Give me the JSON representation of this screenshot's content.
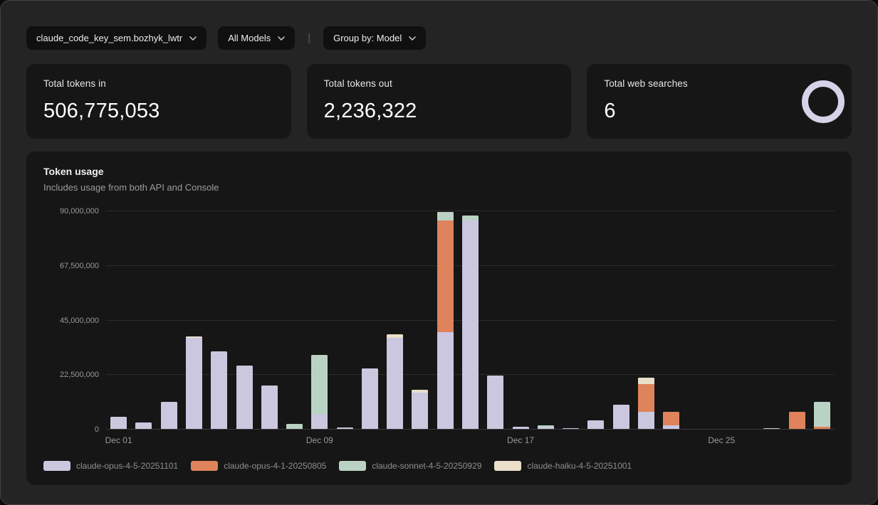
{
  "filters": {
    "key_selector": {
      "label": "claude_code_key_sem.bozhyk_lwtr"
    },
    "models_selector": {
      "label": "All Models"
    },
    "divider": "|",
    "group_by_selector": {
      "label": "Group by: Model"
    }
  },
  "stats": [
    {
      "label": "Total tokens in",
      "value": "506,775,053"
    },
    {
      "label": "Total tokens out",
      "value": "2,236,322"
    },
    {
      "label": "Total web searches",
      "value": "6"
    }
  ],
  "chart": {
    "title": "Token usage",
    "subtitle": "Includes usage from both API and Console"
  },
  "colors": {
    "ring": "#d5d3e8",
    "opus_4_5": "#cbc7df",
    "opus_4_1": "#de835b",
    "sonnet_4_5": "#bad2c3",
    "haiku_4_5": "#eadfc8"
  },
  "chart_data": {
    "type": "bar",
    "stacked": true,
    "title": "Token usage",
    "subtitle": "Includes usage from both API and Console",
    "x": [
      "Dec 01",
      "Dec 02",
      "Dec 03",
      "Dec 04",
      "Dec 05",
      "Dec 06",
      "Dec 07",
      "Dec 08",
      "Dec 09",
      "Dec 10",
      "Dec 11",
      "Dec 12",
      "Dec 13",
      "Dec 14",
      "Dec 15",
      "Dec 16",
      "Dec 17",
      "Dec 18",
      "Dec 19",
      "Dec 20",
      "Dec 21",
      "Dec 22",
      "Dec 23",
      "Dec 24",
      "Dec 25",
      "Dec 26",
      "Dec 27",
      "Dec 28",
      "Dec 29"
    ],
    "x_tick_labels": [
      "Dec 01",
      "Dec 09",
      "Dec 17",
      "Dec 25"
    ],
    "x_tick_indices": [
      0,
      8,
      16,
      24
    ],
    "ylim": [
      0,
      90000000
    ],
    "y_ticks": [
      0,
      22500000,
      45000000,
      67500000,
      90000000
    ],
    "y_tick_labels": [
      "0",
      "22,500,000",
      "45,000,000",
      "67,500,000",
      "90,000,000"
    ],
    "grid": true,
    "legend_position": "bottom-left",
    "series": [
      {
        "name": "claude-opus-4-5-20251101",
        "color": "#cbc7df",
        "values": [
          5000000,
          2500000,
          11000000,
          37500000,
          32000000,
          26000000,
          18000000,
          0,
          6000000,
          500000,
          25000000,
          37500000,
          15000000,
          40000000,
          86000000,
          22000000,
          1000000,
          500000,
          300000,
          3500000,
          10000000,
          7000000,
          1500000,
          0,
          0,
          0,
          300000,
          0,
          0
        ]
      },
      {
        "name": "claude-opus-4-1-20250805",
        "color": "#de835b",
        "values": [
          0,
          0,
          0,
          0,
          0,
          0,
          0,
          0,
          0,
          0,
          0,
          0,
          0,
          46000000,
          0,
          0,
          0,
          0,
          0,
          0,
          0,
          11500000,
          5500000,
          0,
          0,
          0,
          0,
          7000000,
          1000000
        ]
      },
      {
        "name": "claude-sonnet-4-5-20250929",
        "color": "#bad2c3",
        "values": [
          0,
          0,
          0,
          0,
          0,
          0,
          0,
          2000000,
          24500000,
          0,
          0,
          0,
          0,
          3500000,
          2000000,
          0,
          0,
          1000000,
          0,
          0,
          0,
          0,
          0,
          0,
          0,
          0,
          0,
          0,
          10000000
        ]
      },
      {
        "name": "claude-haiku-4-5-20251001",
        "color": "#eadfc8",
        "values": [
          0,
          0,
          0,
          600000,
          0,
          0,
          0,
          0,
          0,
          0,
          0,
          1500000,
          1000000,
          0,
          0,
          0,
          0,
          0,
          0,
          0,
          0,
          2500000,
          0,
          0,
          0,
          0,
          0,
          0,
          0
        ]
      }
    ]
  }
}
